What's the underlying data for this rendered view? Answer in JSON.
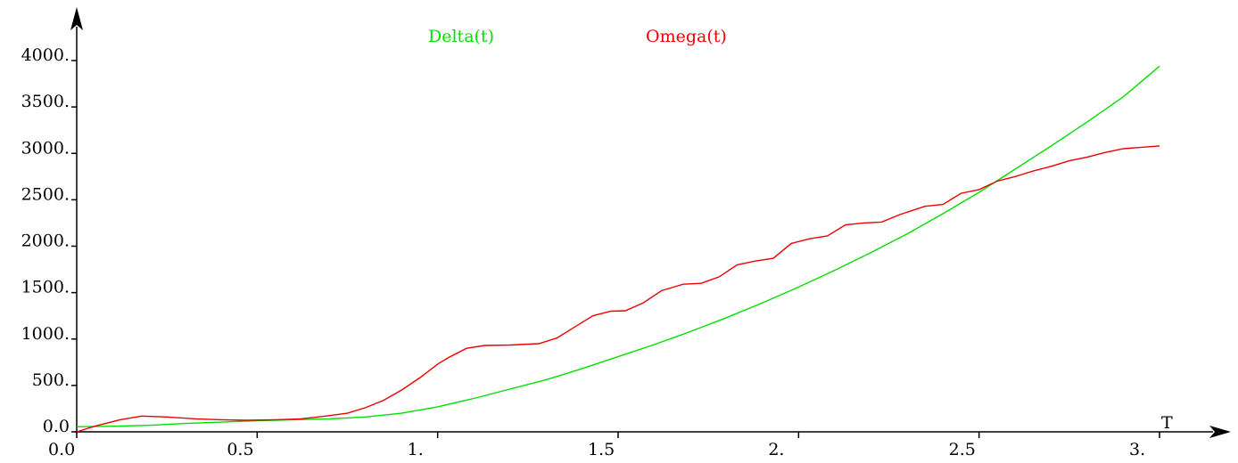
{
  "chart_data": {
    "type": "line",
    "xlabel": "T",
    "ylabel": "",
    "xlim": [
      0.0,
      3.0
    ],
    "ylim": [
      0,
      4000
    ],
    "grid": false,
    "legend_position": "top-center",
    "x_ticks": [
      {
        "value": 0.0,
        "label": "0.0"
      },
      {
        "value": 0.5,
        "label": "0.5"
      },
      {
        "value": 1.0,
        "label": "1."
      },
      {
        "value": 1.5,
        "label": "1.5"
      },
      {
        "value": 2.0,
        "label": "2."
      },
      {
        "value": 2.5,
        "label": "2.5"
      },
      {
        "value": 3.0,
        "label": "3."
      }
    ],
    "y_ticks": [
      {
        "value": 0,
        "label": "0.0"
      },
      {
        "value": 500,
        "label": "500."
      },
      {
        "value": 1000,
        "label": "1000."
      },
      {
        "value": 1500,
        "label": "1500."
      },
      {
        "value": 2000,
        "label": "2000."
      },
      {
        "value": 2500,
        "label": "2500."
      },
      {
        "value": 3000,
        "label": "3000."
      },
      {
        "value": 3500,
        "label": "3500."
      },
      {
        "value": 4000,
        "label": "4000."
      }
    ],
    "series": [
      {
        "name": "Delta(t)",
        "color": "#00e000",
        "x": [
          0.0,
          0.1,
          0.2,
          0.3,
          0.4,
          0.5,
          0.6,
          0.7,
          0.8,
          0.9,
          1.0,
          1.1,
          1.2,
          1.3,
          1.4,
          1.5,
          1.6,
          1.7,
          1.8,
          1.9,
          2.0,
          2.1,
          2.2,
          2.3,
          2.4,
          2.5,
          2.6,
          2.7,
          2.8,
          2.9,
          3.0
        ],
        "y": [
          55,
          60,
          70,
          90,
          105,
          120,
          130,
          140,
          160,
          200,
          270,
          360,
          460,
          560,
          680,
          810,
          940,
          1080,
          1230,
          1390,
          1560,
          1740,
          1930,
          2130,
          2350,
          2580,
          2830,
          3080,
          3340,
          3610,
          3940
        ]
      },
      {
        "name": "Omega(t)",
        "color": "#ee0000",
        "x": [
          0.0,
          0.05,
          0.12,
          0.18,
          0.25,
          0.33,
          0.4,
          0.47,
          0.55,
          0.62,
          0.68,
          0.75,
          0.8,
          0.85,
          0.9,
          0.95,
          1.0,
          1.03,
          1.08,
          1.13,
          1.2,
          1.28,
          1.33,
          1.38,
          1.43,
          1.48,
          1.52,
          1.57,
          1.62,
          1.68,
          1.73,
          1.78,
          1.83,
          1.88,
          1.93,
          1.98,
          2.03,
          2.08,
          2.13,
          2.18,
          2.23,
          2.28,
          2.35,
          2.4,
          2.45,
          2.5,
          2.55,
          2.6,
          2.65,
          2.7,
          2.75,
          2.8,
          2.85,
          2.9,
          3.0
        ],
        "y": [
          0,
          60,
          130,
          170,
          160,
          140,
          130,
          125,
          130,
          140,
          165,
          200,
          260,
          340,
          450,
          580,
          730,
          800,
          900,
          930,
          935,
          950,
          1010,
          1130,
          1250,
          1300,
          1305,
          1390,
          1520,
          1590,
          1600,
          1670,
          1800,
          1840,
          1870,
          2030,
          2080,
          2110,
          2230,
          2250,
          2260,
          2340,
          2430,
          2450,
          2570,
          2610,
          2700,
          2750,
          2810,
          2860,
          2920,
          2960,
          3010,
          3050,
          3080
        ]
      }
    ]
  }
}
